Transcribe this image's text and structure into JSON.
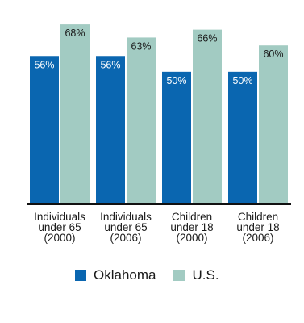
{
  "chart_data": {
    "type": "bar",
    "title": "",
    "categories": [
      [
        "Individuals",
        "under 65",
        "(2000)"
      ],
      [
        "Individuals",
        "under 65",
        "(2006)"
      ],
      [
        "Children",
        "under 18",
        "(2000)"
      ],
      [
        "Children",
        "under 18",
        "(2006)"
      ]
    ],
    "series": [
      {
        "name": "Oklahoma",
        "values": [
          56,
          56,
          50,
          50
        ],
        "labels": [
          "56%",
          "56%",
          "50%",
          "50%"
        ],
        "color": "#0a66b0",
        "label_color": "#ffffff"
      },
      {
        "name": "U.S.",
        "values": [
          68,
          63,
          66,
          60
        ],
        "labels": [
          "68%",
          "63%",
          "66%",
          "60%"
        ],
        "color": "#a2cbc2",
        "label_color": "#1a1a1a"
      }
    ],
    "ylim": [
      0,
      76
    ],
    "grid": false,
    "legend_position": "bottom"
  }
}
